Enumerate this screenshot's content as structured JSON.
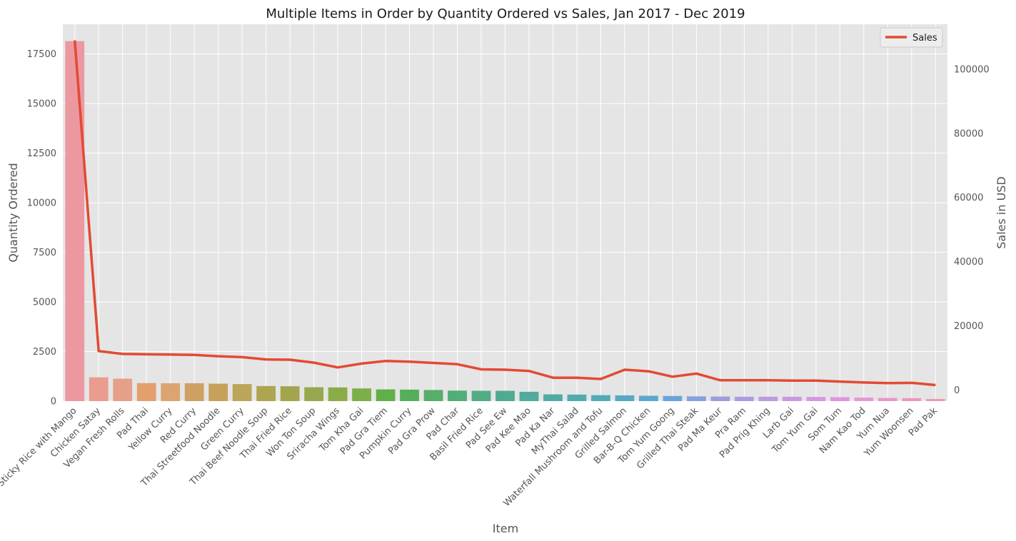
{
  "chart_data": {
    "type": "bar",
    "title": "Multiple Items in Order by Quantity Ordered vs Sales, Jan 2017 - Dec 2019",
    "xlabel": "Item",
    "ylabel": "Quantity Ordered",
    "y2label": "Sales in USD",
    "ylim": [
      0,
      19000
    ],
    "y2lim": [
      -3500,
      114000
    ],
    "yticks": [
      "0",
      "2500",
      "5000",
      "7500",
      "10000",
      "12500",
      "15000",
      "17500"
    ],
    "y2ticks": [
      "0",
      "20000",
      "40000",
      "60000",
      "80000",
      "100000"
    ],
    "grid": true,
    "legend_position": "top-right",
    "categories": [
      "Sticky Rice with Mango",
      "Chicken Satay",
      "Vegan Fresh Rolls",
      "Pad Thai",
      "Yellow Curry",
      "Red Curry",
      "Thai Streetfood Noodle",
      "Green Curry",
      "Thai Beef Noodle Soup",
      "Thai Fried Rice",
      "Won Ton Soup",
      "Sriracha Wings",
      "Tom Kha Gai",
      "Pad Gra Tiem",
      "Pumpkin Curry",
      "Pad Gra Prow",
      "Pad Char",
      "Basil Fried Rice",
      "Pad See Ew",
      "Pad Kee Mao",
      "Pad Ka Nar",
      "MyThai Salad",
      "Waterfall Mushroom and Tofu",
      "Grilled Salmon",
      "Bar-B-Q Chicken",
      "Tom Yum Goong",
      "Grilled Thai Steak",
      "Pad Ma Keur",
      "Pra Ram",
      "Pad Prig Khing",
      "Larb Gai",
      "Tom Yum Gai",
      "Som Tum",
      "Nam Kao Tod",
      "Yum Nua",
      "Yum Woonsen",
      "Pad Pak"
    ],
    "series": [
      {
        "kind": "bar",
        "axis": "left",
        "values": [
          18150,
          1200,
          1130,
          910,
          900,
          900,
          880,
          860,
          760,
          750,
          700,
          690,
          640,
          590,
          580,
          560,
          530,
          520,
          520,
          470,
          340,
          330,
          300,
          290,
          270,
          260,
          240,
          230,
          220,
          220,
          220,
          210,
          200,
          180,
          160,
          150,
          110
        ]
      },
      {
        "kind": "line",
        "axis": "right",
        "name": "Sales",
        "values": [
          109000,
          12100,
          11200,
          11100,
          11000,
          10900,
          10500,
          10200,
          9500,
          9400,
          8500,
          7000,
          8200,
          9000,
          8800,
          8400,
          8000,
          6400,
          6300,
          5900,
          3800,
          3800,
          3400,
          6300,
          5800,
          4100,
          5100,
          3000,
          3000,
          3000,
          2900,
          2900,
          2600,
          2300,
          2100,
          2200,
          1500
        ]
      }
    ],
    "colors": {
      "background": "#e5e5e5",
      "grid": "#ffffff",
      "line": "#e24a33",
      "bars": [
        "#ec98a0",
        "#ea9c8e",
        "#e6a087",
        "#e3a06d",
        "#dba470",
        "#cfa063",
        "#c7a15b",
        "#bca55a",
        "#aea451",
        "#a3a54e",
        "#97a94e",
        "#8aab48",
        "#7aaf4a",
        "#60b047",
        "#55af5a",
        "#55ae6a",
        "#52ad77",
        "#51ac84",
        "#4fab8f",
        "#50ab9b",
        "#50aba4",
        "#51abad",
        "#53aab8",
        "#56a9c3",
        "#5aa8cf",
        "#6aa5d9",
        "#86a1db",
        "#9d9ddd",
        "#ad9be0",
        "#bc99e0",
        "#ca98e2",
        "#d797e4",
        "#e195dc",
        "#e599d3",
        "#ea97c8",
        "#eb98bd",
        "#ec9ab1"
      ]
    }
  }
}
